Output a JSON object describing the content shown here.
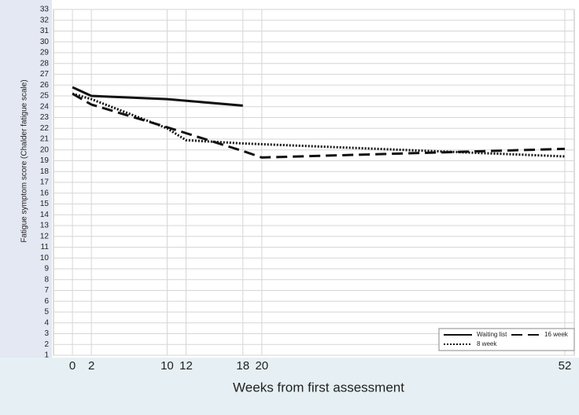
{
  "chart_data": {
    "type": "line",
    "x_label": "Weeks from first assessment",
    "y_label": "Fatigue symptom score (Chalder fatigue scale)",
    "xlim": [
      -2,
      53
    ],
    "ylim": [
      1,
      33
    ],
    "xticks": [
      0,
      2,
      10,
      12,
      18,
      20,
      52
    ],
    "yticks": [
      1,
      2,
      3,
      4,
      5,
      6,
      7,
      8,
      9,
      10,
      11,
      12,
      13,
      14,
      15,
      16,
      17,
      18,
      19,
      20,
      21,
      22,
      23,
      24,
      25,
      26,
      27,
      28,
      29,
      30,
      31,
      32,
      33
    ],
    "grid": true,
    "legend": "lower right",
    "series": [
      {
        "name": "Waiting list",
        "color": "#111111",
        "style": "solid",
        "x": [
          0,
          2,
          10,
          18
        ],
        "values": [
          25.8,
          25.0,
          24.7,
          24.1
        ]
      },
      {
        "name": "16 week",
        "color": "#111111",
        "style": "dashed",
        "x": [
          0,
          2,
          10,
          18,
          20,
          52
        ],
        "values": [
          25.2,
          24.2,
          22.1,
          19.9,
          19.3,
          20.1
        ]
      },
      {
        "name": "8 week",
        "color": "#111111",
        "style": "dotted",
        "x": [
          0,
          2,
          10,
          12,
          18,
          52
        ],
        "values": [
          25.2,
          24.7,
          22.0,
          20.9,
          20.6,
          19.4
        ]
      }
    ]
  }
}
